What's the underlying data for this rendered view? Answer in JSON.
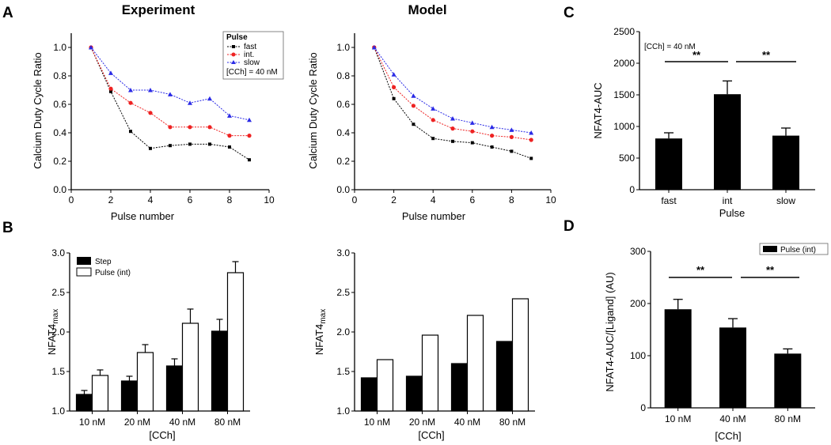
{
  "panel_letters": {
    "a": "A",
    "b": "B",
    "c": "C",
    "d": "D"
  },
  "colors": {
    "fast": "#000000",
    "int": "#ee2222",
    "slow": "#2a2ae6",
    "bar_black": "#000000",
    "bar_white": "#ffffff"
  },
  "chart_data": [
    {
      "id": "A1",
      "type": "line",
      "title": "Experiment",
      "xlabel": "Pulse number",
      "ylabel": "Calcium Duty Cycle Ratio",
      "xlim": [
        0,
        10
      ],
      "ylim": [
        0,
        1.1
      ],
      "xticks": [
        "0",
        "2",
        "4",
        "6",
        "8",
        "10"
      ],
      "xtick_values": [
        0,
        2,
        4,
        6,
        8,
        10
      ],
      "yticks": [
        "0.0",
        "0.2",
        "0.4",
        "0.6",
        "0.8",
        "1.0"
      ],
      "ytick_values": [
        0,
        0.2,
        0.4,
        0.6,
        0.8,
        1.0
      ],
      "x": [
        1,
        2,
        3,
        4,
        5,
        6,
        7,
        8,
        9
      ],
      "series": [
        {
          "name": "fast",
          "color": "#000000",
          "marker": "square",
          "values": [
            1.0,
            0.69,
            0.41,
            0.29,
            0.31,
            0.32,
            0.32,
            0.3,
            0.21
          ]
        },
        {
          "name": "int.",
          "color": "#ee2222",
          "marker": "circle",
          "values": [
            1.0,
            0.71,
            0.61,
            0.54,
            0.44,
            0.44,
            0.44,
            0.38,
            0.38
          ]
        },
        {
          "name": "slow",
          "color": "#2a2ae6",
          "marker": "triangle",
          "values": [
            1.0,
            0.82,
            0.7,
            0.7,
            0.67,
            0.61,
            0.64,
            0.52,
            0.49
          ]
        }
      ],
      "legend": {
        "title": "Pulse",
        "labels": [
          "fast",
          "int.",
          "slow"
        ],
        "extra": "[CCh] = 40 nM",
        "placement": "top-right"
      }
    },
    {
      "id": "A2",
      "type": "line",
      "title": "Model",
      "xlabel": "Pulse number",
      "ylabel": "Calcium Duty Cycle Ratio",
      "xlim": [
        0,
        10
      ],
      "ylim": [
        0,
        1.1
      ],
      "xticks": [
        "0",
        "2",
        "4",
        "6",
        "8",
        "10"
      ],
      "xtick_values": [
        0,
        2,
        4,
        6,
        8,
        10
      ],
      "yticks": [
        "0.0",
        "0.2",
        "0.4",
        "0.6",
        "0.8",
        "1.0"
      ],
      "ytick_values": [
        0,
        0.2,
        0.4,
        0.6,
        0.8,
        1.0
      ],
      "x": [
        1,
        2,
        3,
        4,
        5,
        6,
        7,
        8,
        9
      ],
      "series": [
        {
          "name": "fast",
          "color": "#000000",
          "marker": "square",
          "values": [
            1.0,
            0.64,
            0.46,
            0.36,
            0.34,
            0.33,
            0.3,
            0.27,
            0.22
          ]
        },
        {
          "name": "int.",
          "color": "#ee2222",
          "marker": "circle",
          "values": [
            1.0,
            0.72,
            0.59,
            0.49,
            0.43,
            0.41,
            0.38,
            0.37,
            0.35
          ]
        },
        {
          "name": "slow",
          "color": "#2a2ae6",
          "marker": "triangle",
          "values": [
            1.0,
            0.81,
            0.66,
            0.57,
            0.5,
            0.47,
            0.44,
            0.42,
            0.4
          ]
        }
      ]
    },
    {
      "id": "B1",
      "type": "bar",
      "xlabel": "[CCh]",
      "ylabel": "NFAT4",
      "ylabel_sub": "max",
      "ylim": [
        1.0,
        3.0
      ],
      "yticks": [
        "1.0",
        "1.5",
        "2.0",
        "2.5",
        "3.0"
      ],
      "ytick_values": [
        1.0,
        1.5,
        2.0,
        2.5,
        3.0
      ],
      "categories": [
        "10 nM",
        "20 nM",
        "40 nM",
        "80 nM"
      ],
      "series": [
        {
          "name": "Step",
          "fill": "black",
          "values": [
            1.21,
            1.38,
            1.57,
            2.01
          ],
          "errors": [
            0.05,
            0.06,
            0.09,
            0.15
          ]
        },
        {
          "name": "Pulse (int)",
          "fill": "white",
          "values": [
            1.45,
            1.74,
            2.11,
            2.75
          ],
          "errors": [
            0.07,
            0.1,
            0.18,
            0.14
          ]
        }
      ],
      "legend": {
        "labels": [
          "Step",
          "Pulse (int)"
        ],
        "placement": "top-left"
      }
    },
    {
      "id": "B2",
      "type": "bar",
      "xlabel": "[CCh]",
      "ylabel": "NFAT4",
      "ylabel_sub": "max",
      "ylim": [
        1.0,
        3.0
      ],
      "yticks": [
        "1.0",
        "1.5",
        "2.0",
        "2.5",
        "3.0"
      ],
      "ytick_values": [
        1.0,
        1.5,
        2.0,
        2.5,
        3.0
      ],
      "categories": [
        "10 nM",
        "20 nM",
        "40 nM",
        "80 nM"
      ],
      "series": [
        {
          "name": "Step",
          "fill": "black",
          "values": [
            1.42,
            1.44,
            1.6,
            1.88
          ]
        },
        {
          "name": "Pulse (int)",
          "fill": "white",
          "values": [
            1.65,
            1.96,
            2.21,
            2.42
          ]
        }
      ]
    },
    {
      "id": "C",
      "type": "bar",
      "xlabel": "Pulse",
      "ylabel": "NFAT4-AUC",
      "ylim": [
        0,
        2500
      ],
      "yticks": [
        "0",
        "500",
        "1000",
        "1500",
        "2000",
        "2500"
      ],
      "ytick_values": [
        0,
        500,
        1000,
        1500,
        2000,
        2500
      ],
      "categories": [
        "fast",
        "int",
        "slow"
      ],
      "values": [
        810,
        1510,
        855
      ],
      "errors": [
        90,
        210,
        120
      ],
      "annotation": "[CCh] = 40 nM",
      "significance": [
        "**",
        "**"
      ]
    },
    {
      "id": "D",
      "type": "bar",
      "xlabel": "[CCh]",
      "ylabel": "NFAT4-AUC/[Ligand] (AU)",
      "ylim": [
        0,
        300
      ],
      "yticks": [
        "0",
        "100",
        "200",
        "300"
      ],
      "ytick_values": [
        0,
        100,
        200,
        300
      ],
      "categories": [
        "10 nM",
        "40 nM",
        "80 nM"
      ],
      "values": [
        189,
        154,
        104
      ],
      "errors": [
        19,
        17,
        9
      ],
      "legend": {
        "labels": [
          "Pulse (int)"
        ],
        "placement": "top-right"
      },
      "significance": [
        "**",
        "**"
      ]
    }
  ]
}
